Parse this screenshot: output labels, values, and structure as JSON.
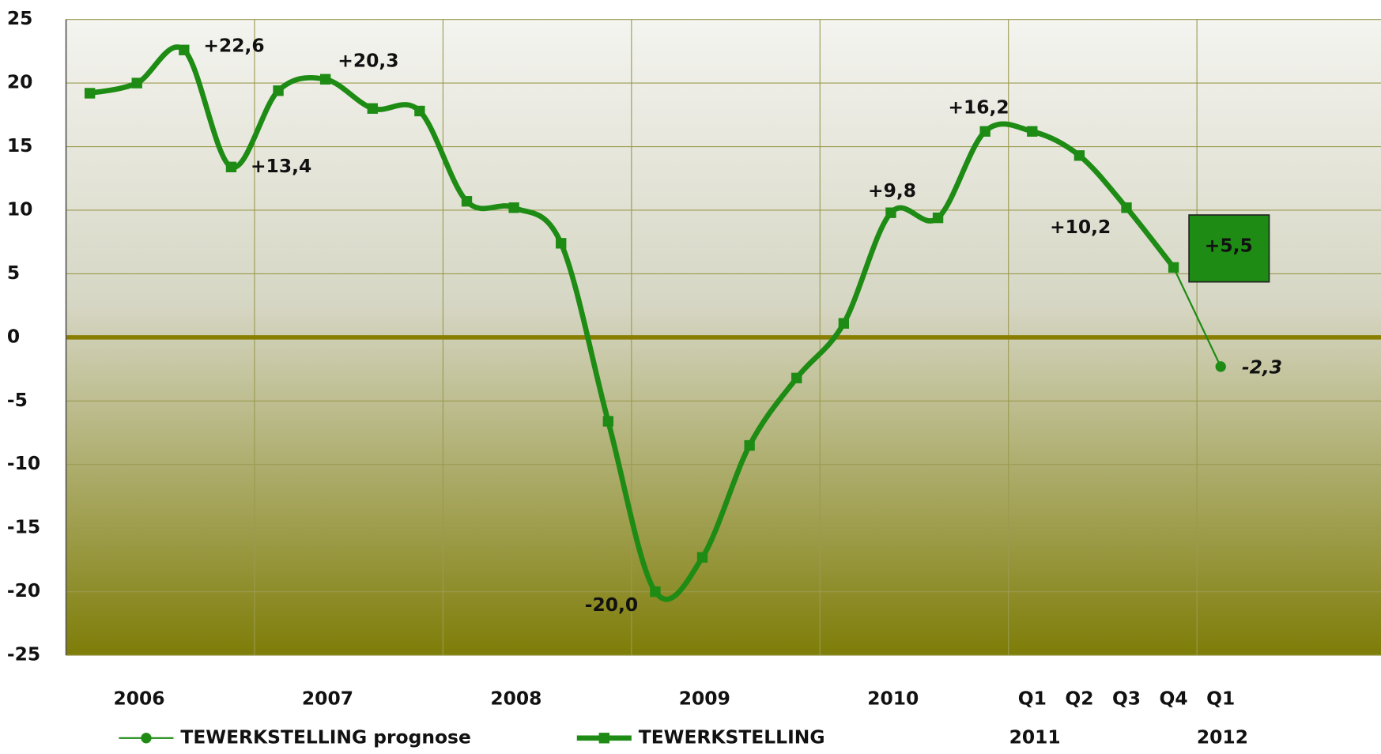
{
  "chart_data": {
    "type": "line",
    "categories": [
      null,
      null,
      null,
      null,
      null,
      null,
      null,
      null,
      null,
      null,
      null,
      null,
      null,
      null,
      null,
      null,
      null,
      null,
      null,
      null,
      "Q1",
      "Q2",
      "Q3",
      "Q4",
      "Q1"
    ],
    "year_labels": [
      "2006",
      "2007",
      "2008",
      "2009",
      "2010",
      "2011",
      "2012"
    ],
    "series": [
      {
        "name": "TEWERKSTELLING prognose",
        "color": "#1e8c14",
        "marker": "circle",
        "values": [
          null,
          null,
          null,
          null,
          null,
          null,
          null,
          null,
          null,
          null,
          null,
          null,
          null,
          null,
          null,
          null,
          null,
          null,
          null,
          null,
          null,
          null,
          null,
          5.5,
          -2.3
        ],
        "value_labels": [
          null,
          null,
          null,
          null,
          null,
          null,
          null,
          null,
          null,
          null,
          null,
          null,
          null,
          null,
          null,
          null,
          null,
          null,
          null,
          null,
          null,
          null,
          null,
          null,
          "-2,3"
        ]
      },
      {
        "name": "TEWERKSTELLING",
        "color": "#1e8c14",
        "marker": "square",
        "values": [
          19.2,
          20.0,
          22.6,
          13.4,
          19.4,
          20.3,
          18.0,
          17.8,
          10.7,
          10.2,
          7.4,
          -6.6,
          -20.0,
          -17.3,
          -8.5,
          -3.2,
          1.1,
          9.8,
          9.4,
          16.2,
          16.2,
          14.3,
          10.2,
          5.5,
          null
        ],
        "value_labels": [
          null,
          null,
          "+22,6",
          "+13,4",
          null,
          "+20,3",
          null,
          null,
          null,
          null,
          null,
          null,
          "-20,0",
          null,
          null,
          null,
          null,
          "+9,8",
          null,
          "+16,2",
          null,
          null,
          "+10,2",
          "+5,5",
          null
        ]
      }
    ],
    "ylim": [
      -25,
      25
    ],
    "yticks": [
      -25,
      -20,
      -15,
      -10,
      -5,
      0,
      5,
      10,
      15,
      20,
      25
    ],
    "grid": true
  }
}
